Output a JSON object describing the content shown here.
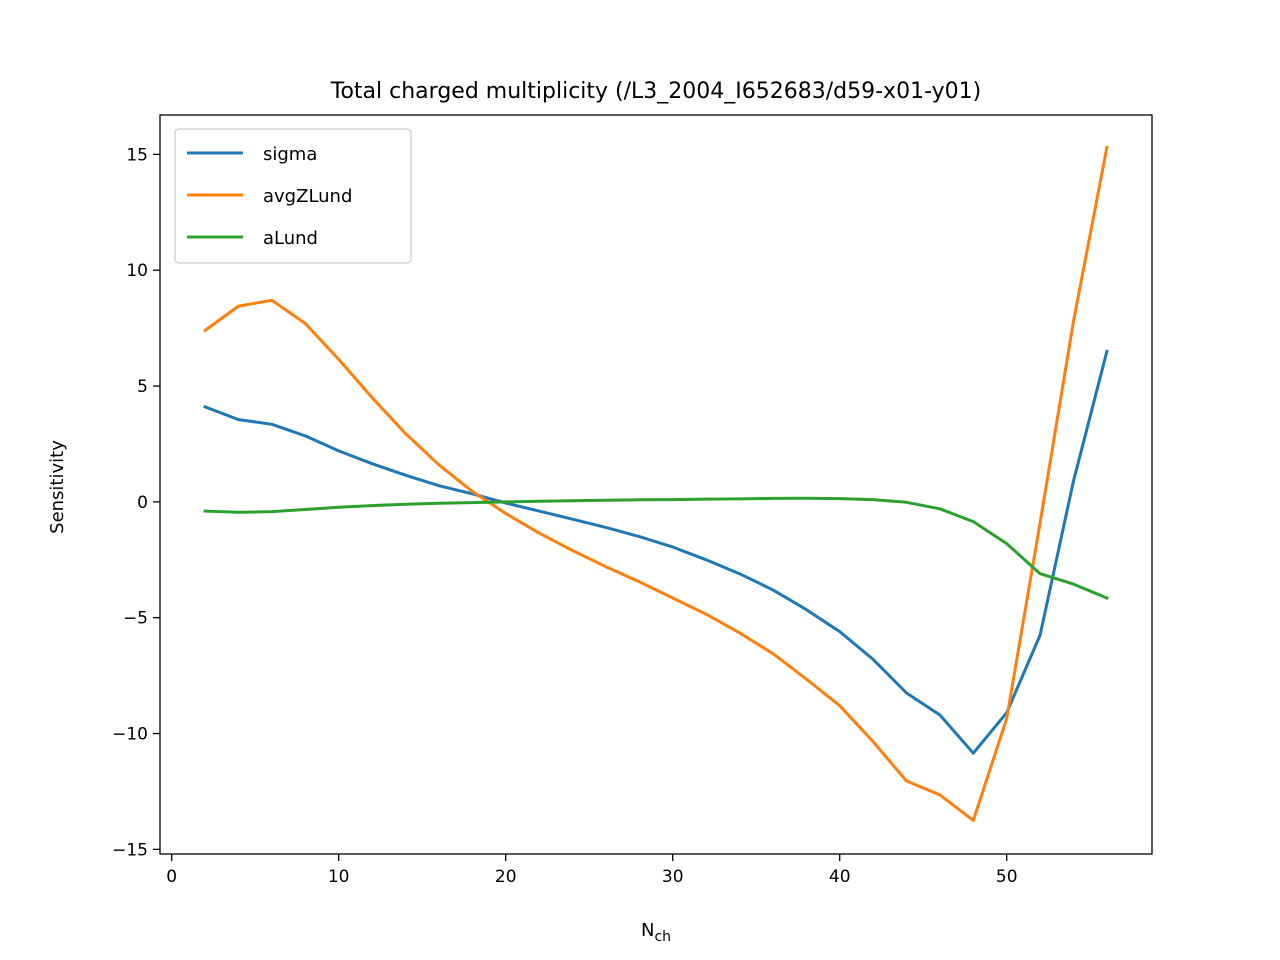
{
  "chart_data": {
    "type": "line",
    "title": "Total charged multiplicity (/L3_2004_I652683/d59-x01-y01)",
    "xlabel": "N",
    "xlabel_sub": "ch",
    "ylabel": "Sensitivity",
    "xlim": [
      -0.7,
      58.7
    ],
    "ylim": [
      -15.2,
      16.7
    ],
    "xticks": [
      0,
      10,
      20,
      30,
      40,
      50
    ],
    "xtick_labels": [
      "0",
      "10",
      "20",
      "30",
      "40",
      "50"
    ],
    "yticks": [
      -15,
      -10,
      -5,
      0,
      5,
      10,
      15
    ],
    "ytick_labels": [
      "−15",
      "−10",
      "−5",
      "0",
      "5",
      "10",
      "15"
    ],
    "grid": false,
    "legend_position": "top-left",
    "x": [
      2,
      4,
      6,
      8,
      10,
      12,
      14,
      16,
      18,
      20,
      22,
      24,
      26,
      28,
      30,
      32,
      34,
      36,
      38,
      40,
      42,
      44,
      46,
      48,
      50,
      52,
      54,
      56
    ],
    "series": [
      {
        "name": "sigma",
        "color": "#1f77b4",
        "values": [
          4.1,
          3.55,
          3.35,
          2.85,
          2.2,
          1.65,
          1.15,
          0.7,
          0.35,
          -0.05,
          -0.4,
          -0.75,
          -1.1,
          -1.5,
          -1.95,
          -2.5,
          -3.1,
          -3.8,
          -4.65,
          -5.6,
          -6.8,
          -8.25,
          -9.2,
          -10.85,
          -9.1,
          -5.75,
          0.9,
          6.5
        ]
      },
      {
        "name": "avgZLund",
        "color": "#ff7f0e",
        "values": [
          7.4,
          8.45,
          8.7,
          7.7,
          6.15,
          4.5,
          2.95,
          1.6,
          0.45,
          -0.5,
          -1.35,
          -2.1,
          -2.8,
          -3.45,
          -4.15,
          -4.85,
          -5.65,
          -6.55,
          -7.65,
          -8.8,
          -10.35,
          -12.05,
          -12.65,
          -13.75,
          -9.35,
          -0.9,
          7.8,
          15.3
        ]
      },
      {
        "name": "aLund",
        "color": "#2ca02c",
        "values": [
          -0.4,
          -0.45,
          -0.42,
          -0.33,
          -0.23,
          -0.16,
          -0.1,
          -0.06,
          -0.03,
          0.0,
          0.03,
          0.05,
          0.07,
          0.09,
          0.1,
          0.12,
          0.13,
          0.15,
          0.16,
          0.14,
          0.1,
          -0.02,
          -0.3,
          -0.85,
          -1.8,
          -3.1,
          -3.55,
          -4.15
        ]
      }
    ]
  }
}
